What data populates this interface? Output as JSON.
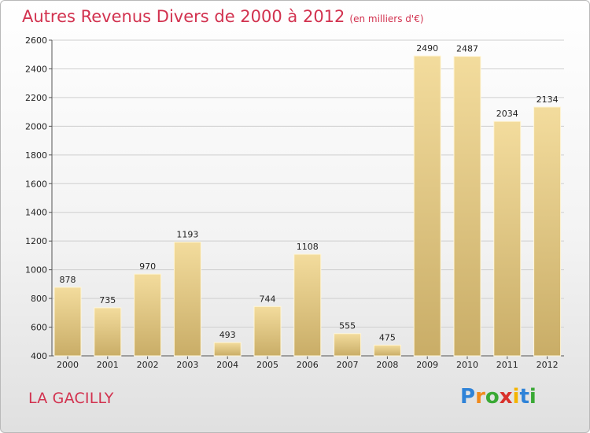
{
  "title": "Autres Revenus Divers de 2000 à 2012",
  "title_unit": "(en milliers d'€)",
  "commune": "LA GACILLY",
  "brand": {
    "letters": [
      "P",
      "r",
      "o",
      "x",
      "i",
      "t",
      "i"
    ],
    "colors": [
      "#2f83d8",
      "#f08a1c",
      "#3aa935",
      "#d9322c",
      "#f4b400",
      "#2f83d8",
      "#3aa935"
    ]
  },
  "colors": {
    "accent": "#d2324f",
    "bar_light": "#f3dc9d",
    "bar_dark": "#c9ad67",
    "grid": "#cfcfcf"
  },
  "chart_data": {
    "type": "bar",
    "categories": [
      "2000",
      "2001",
      "2002",
      "2003",
      "2004",
      "2005",
      "2006",
      "2007",
      "2008",
      "2009",
      "2010",
      "2011",
      "2012"
    ],
    "values": [
      878,
      735,
      970,
      1193,
      493,
      744,
      1108,
      555,
      475,
      2490,
      2487,
      2034,
      2134
    ],
    "data_labels": [
      "878",
      "735",
      "970",
      "1193",
      "493",
      "744",
      "1108",
      "555",
      "475",
      "2490",
      "2487",
      "2034",
      "2134"
    ],
    "ylim": [
      400,
      2600
    ],
    "yticks": [
      400,
      600,
      800,
      1000,
      1200,
      1400,
      1600,
      1800,
      2000,
      2200,
      2400,
      2600
    ],
    "ytick_labels": [
      "400",
      "600",
      "800",
      "1000",
      "1200",
      "1400",
      "1600",
      "1800",
      "2000",
      "2200",
      "2400",
      "2600"
    ],
    "grid": true,
    "legend": "none"
  }
}
